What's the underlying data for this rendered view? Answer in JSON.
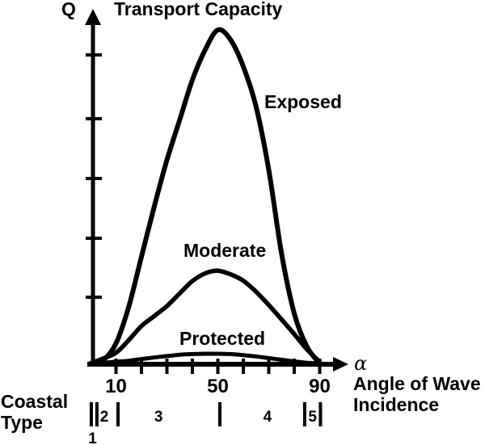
{
  "colors": {
    "ink": "#000000",
    "background": "#ffffff"
  },
  "chart_data": {
    "type": "line",
    "title": "Transport Capacity",
    "y_symbol": "Q",
    "x_symbol": "α",
    "xlabel_line1": "Angle of Wave",
    "xlabel_line2": "Incidence",
    "ylabel": "Transport Capacity",
    "x_range": [
      0,
      90
    ],
    "y_range": [
      0,
      1
    ],
    "grid": false,
    "legend_position": "inline-curve-labels",
    "x_ticks": [
      10,
      20,
      30,
      40,
      50,
      60,
      70,
      80,
      90
    ],
    "x_tick_labels": [
      {
        "value": 10,
        "text": "10"
      },
      {
        "value": 50,
        "text": "50"
      },
      {
        "value": 90,
        "text": "90"
      }
    ],
    "y_unlabeled_tick_count": 5,
    "x": [
      0,
      5,
      10,
      15,
      20,
      25,
      30,
      35,
      40,
      45,
      50,
      55,
      60,
      65,
      70,
      75,
      80,
      85,
      90
    ],
    "series": [
      {
        "name": "Exposed",
        "values": [
          0,
          0.01,
          0.06,
          0.17,
          0.32,
          0.47,
          0.61,
          0.73,
          0.85,
          0.94,
          1.0,
          0.97,
          0.89,
          0.77,
          0.58,
          0.33,
          0.15,
          0.05,
          0
        ]
      },
      {
        "name": "Moderate",
        "values": [
          0,
          0.015,
          0.032,
          0.07,
          0.112,
          0.142,
          0.172,
          0.21,
          0.247,
          0.27,
          0.278,
          0.267,
          0.248,
          0.215,
          0.175,
          0.132,
          0.088,
          0.042,
          0.005
        ]
      },
      {
        "name": "Protected",
        "values": [
          0,
          0.002,
          0.005,
          0.008,
          0.013,
          0.018,
          0.022,
          0.026,
          0.028,
          0.029,
          0.029,
          0.028,
          0.025,
          0.021,
          0.016,
          0.011,
          0.006,
          0.002,
          0
        ]
      }
    ]
  },
  "coastal_scale": {
    "title_line1": "Coastal",
    "title_line2": "Type",
    "boundaries_alpha": [
      0.3,
      2.5,
      10.8,
      50.8,
      84.1,
      90.3
    ],
    "zones": [
      {
        "label": "1",
        "alpha": 0.8,
        "position": "below"
      },
      {
        "label": "2",
        "alpha": 5.4,
        "position": "inline"
      },
      {
        "label": "3",
        "alpha": 26.7,
        "position": "inline"
      },
      {
        "label": "4",
        "alpha": 69.5,
        "position": "inline"
      },
      {
        "label": "5",
        "alpha": 87.2,
        "position": "inline"
      }
    ]
  }
}
